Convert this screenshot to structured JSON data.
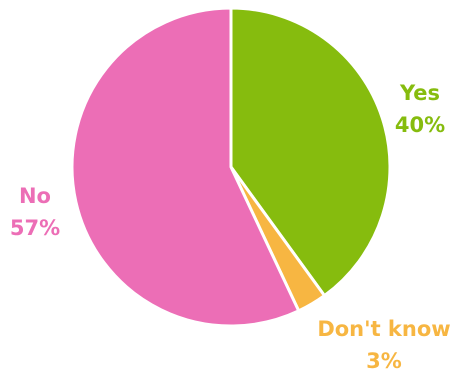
{
  "chart_data": {
    "type": "pie",
    "title": "",
    "start_angle_deg": 0,
    "direction": "clockwise",
    "slices": [
      {
        "label": "Yes",
        "value": 40,
        "value_label": "40%",
        "color": "#86BC0E"
      },
      {
        "label": "Don't know",
        "value": 3,
        "value_label": "3%",
        "color": "#F7B642"
      },
      {
        "label": "No",
        "value": 57,
        "value_label": "57%",
        "color": "#EC6EB6"
      }
    ]
  }
}
